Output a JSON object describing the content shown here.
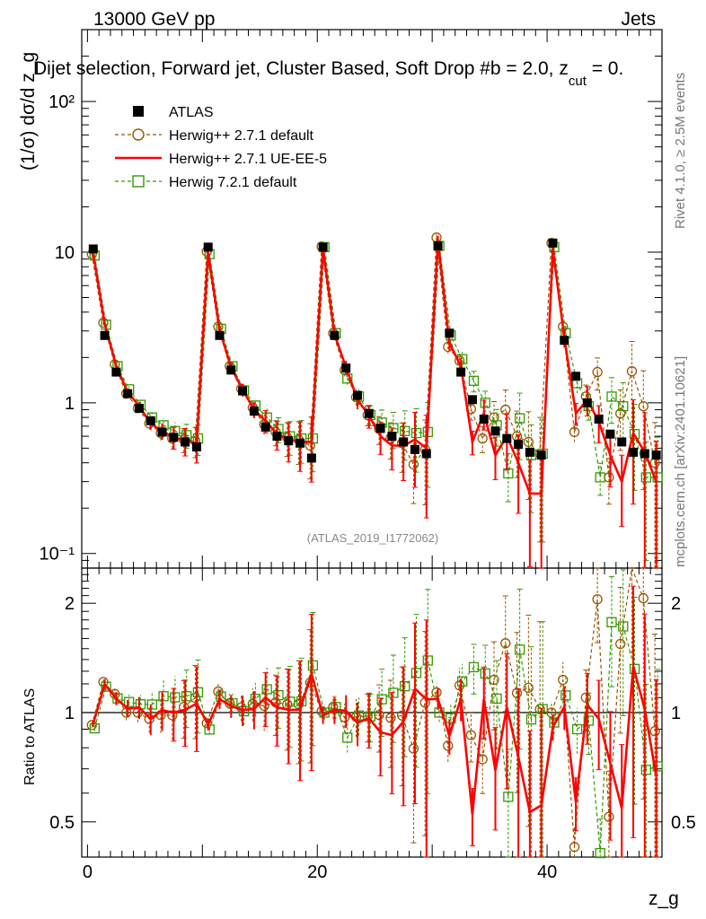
{
  "header": {
    "left": "13000 GeV pp",
    "right": "Jets",
    "title": "Dijet selection, Forward jet, Cluster Based, Soft Drop #b = 2.0, z",
    "title_cut": "cut",
    "title_tail": " = 0."
  },
  "side_labels": {
    "rivet": "Rivet 4.1.0, ≥ 2.5M events",
    "mcplots": "mcplots.cern.ch [arXiv:2401.10621]"
  },
  "analysis_ref": "(ATLAS_2019_I1772062)",
  "chart_data": {
    "type": "scatter",
    "title": "Dijet selection, Forward jet, Cluster Based, Soft Drop #b = 2.0, z_cut = 0.",
    "xlabel": "z_g",
    "ylabel": "(1/σ) dσ/d z_g",
    "ratio_ylabel": "Ratio to ATLAS",
    "xlim": [
      -0.5,
      50
    ],
    "ylim": [
      0.08,
      300
    ],
    "yscale": "log",
    "ratio_ylim": [
      0.4,
      2.5
    ],
    "x_ticks": [
      "0",
      "20",
      "40"
    ],
    "y_ticks": [
      "10⁻¹",
      "1",
      "10",
      "10²"
    ],
    "ratio_ticks": [
      "0.5",
      "1",
      "2"
    ],
    "x": [
      0.5,
      1.5,
      2.5,
      3.5,
      4.5,
      5.5,
      6.5,
      7.5,
      8.5,
      9.5,
      10.5,
      11.5,
      12.5,
      13.5,
      14.5,
      15.5,
      16.5,
      17.5,
      18.5,
      19.5,
      20.5,
      21.5,
      22.5,
      23.5,
      24.5,
      25.5,
      26.5,
      27.5,
      28.5,
      29.5,
      30.5,
      31.5,
      32.5,
      33.5,
      34.5,
      35.5,
      36.5,
      37.5,
      38.5,
      39.5,
      40.5,
      41.5,
      42.5,
      43.5,
      44.5,
      45.5,
      46.5,
      47.5,
      48.5,
      49.5
    ],
    "legend": [
      {
        "name": "ATLAS",
        "color": "#000000",
        "marker": "square-filled"
      },
      {
        "name": "Herwig++ 2.7.1 default",
        "color": "#995500",
        "marker": "circle-open",
        "dash": true
      },
      {
        "name": "Herwig++ 2.7.1 UE-EE-5",
        "color": "#ff0000",
        "marker": "line",
        "dash": false
      },
      {
        "name": "Herwig 7.2.1 default",
        "color": "#339900",
        "marker": "square-open",
        "dash": true
      }
    ],
    "series": [
      {
        "name": "ATLAS",
        "values": [
          10.5,
          2.8,
          1.6,
          1.15,
          0.92,
          0.76,
          0.64,
          0.59,
          0.55,
          0.51,
          10.8,
          2.8,
          1.65,
          1.2,
          0.88,
          0.69,
          0.6,
          0.56,
          0.54,
          0.43,
          10.8,
          2.8,
          1.7,
          1.12,
          0.85,
          0.68,
          0.6,
          0.55,
          0.49,
          0.46,
          11.0,
          2.9,
          1.6,
          1.05,
          0.78,
          0.65,
          0.58,
          0.53,
          0.47,
          0.45,
          11.5,
          2.6,
          1.5,
          1.0,
          0.78,
          0.62,
          0.55,
          0.47,
          0.46,
          0.45
        ]
      },
      {
        "name": "Herwig++ 2.7.1 default",
        "values": [
          9.7,
          3.4,
          1.8,
          1.15,
          0.92,
          0.73,
          0.63,
          0.58,
          0.57,
          0.56,
          10.1,
          3.2,
          1.75,
          1.24,
          0.93,
          0.72,
          0.64,
          0.59,
          0.57,
          0.52,
          10.9,
          2.9,
          1.65,
          1.09,
          0.83,
          0.67,
          0.58,
          0.54,
          0.39,
          0.49,
          12.5,
          2.35,
          1.9,
          0.91,
          0.58,
          0.8,
          0.9,
          0.6,
          0.55,
          0.46,
          11.5,
          3.2,
          0.64,
          1.1,
          1.6,
          0.32,
          0.85,
          1.62,
          0.95,
          0.4
        ]
      },
      {
        "name": "Herwig++ 2.7.1 UE-EE-5",
        "values": [
          9.8,
          3.35,
          1.75,
          1.18,
          0.95,
          0.73,
          0.65,
          0.59,
          0.56,
          0.54,
          10.0,
          3.05,
          1.72,
          1.22,
          0.9,
          0.76,
          0.62,
          0.57,
          0.55,
          0.55,
          10.6,
          2.85,
          1.72,
          1.05,
          0.82,
          0.6,
          0.52,
          0.52,
          0.57,
          0.5,
          12.0,
          2.5,
          1.75,
          0.55,
          0.85,
          0.45,
          0.6,
          0.4,
          0.25,
          0.25,
          10.5,
          2.7,
          0.85,
          1.05,
          0.75,
          0.45,
          0.3,
          0.63,
          0.47,
          0.3
        ]
      },
      {
        "name": "Herwig 7.2.1 default",
        "values": [
          9.5,
          3.3,
          1.75,
          1.23,
          0.97,
          0.8,
          0.71,
          0.65,
          0.61,
          0.58,
          9.7,
          3.1,
          1.75,
          1.21,
          0.96,
          0.8,
          0.67,
          0.6,
          0.58,
          0.58,
          10.8,
          2.9,
          1.45,
          1.1,
          0.83,
          0.74,
          0.68,
          0.65,
          0.63,
          0.64,
          11.0,
          2.8,
          1.95,
          1.4,
          1.0,
          0.71,
          0.34,
          0.79,
          0.45,
          0.46,
          10.8,
          2.9,
          1.35,
          0.95,
          0.32,
          1.1,
          0.95,
          0.62,
          0.32,
          0.32
        ]
      }
    ]
  }
}
